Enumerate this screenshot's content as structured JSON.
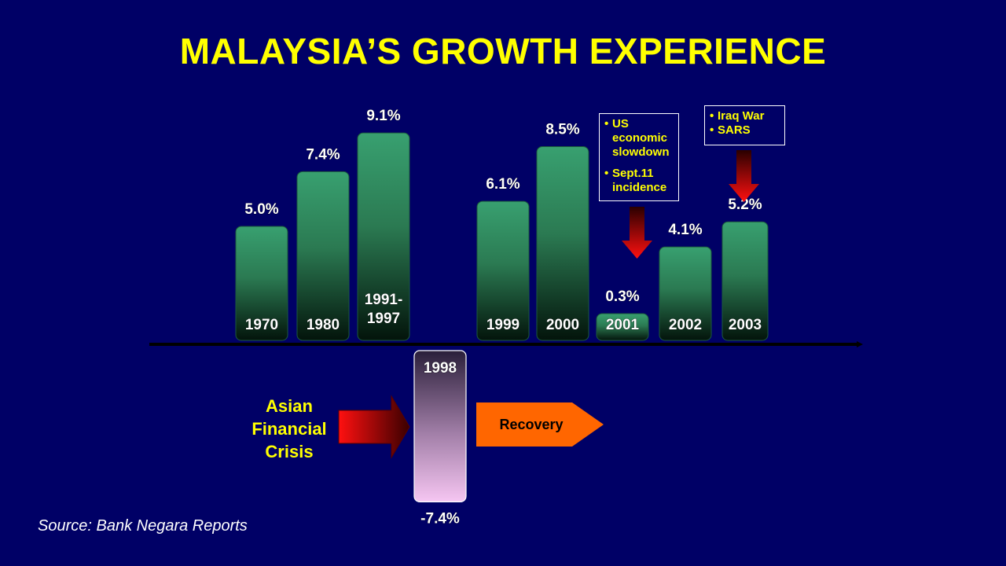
{
  "title": "MALAYSIA’S GROWTH EXPERIENCE",
  "source": "Source: Bank Negara Reports",
  "colors": {
    "background": "#000066",
    "title": "#ffff00",
    "bar_top": "#38a070",
    "bar_bottom": "#03140b",
    "negative_top": "#2a1f3a",
    "negative_bottom": "#f6c6f2",
    "recovery": "#ff6600",
    "crisis_arrow": "#ff0000"
  },
  "chart_data": {
    "type": "bar",
    "categories": [
      "1970",
      "1980",
      "1991-1997",
      "1998",
      "1999",
      "2000",
      "2001",
      "2002",
      "2003"
    ],
    "values": [
      5.0,
      7.4,
      9.1,
      -7.4,
      6.1,
      8.5,
      0.3,
      4.1,
      5.2
    ],
    "value_labels": [
      "5.0%",
      "7.4%",
      "9.1%",
      "-7.4%",
      "6.1%",
      "8.5%",
      "0.3%",
      "4.1%",
      "5.2%"
    ],
    "category_labels": [
      [
        "1970"
      ],
      [
        "1980"
      ],
      [
        "1991-",
        "1997"
      ],
      [
        "1998"
      ],
      [
        "1999"
      ],
      [
        "2000"
      ],
      [
        "2001"
      ],
      [
        "2002"
      ],
      [
        "2003"
      ]
    ],
    "title": "MALAYSIA’S GROWTH EXPERIENCE",
    "xlabel": "",
    "ylabel": "",
    "ylim": [
      -8,
      10
    ],
    "grid": false,
    "legend": null
  },
  "annotations": {
    "crisis": {
      "lines": [
        "Asian",
        "Financial",
        "Crisis"
      ]
    },
    "recovery": "Recovery",
    "slowdown": {
      "items": [
        [
          "US",
          "economic",
          "slowdown"
        ],
        [
          "Sept.11",
          "incidence"
        ]
      ]
    },
    "iraq": {
      "items": [
        "Iraq War",
        "SARS"
      ]
    }
  }
}
